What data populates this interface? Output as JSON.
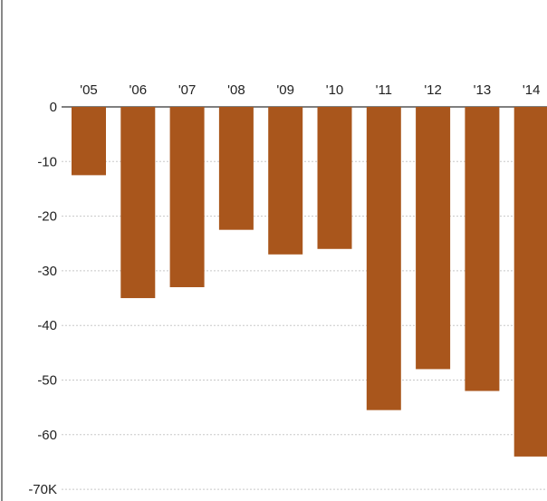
{
  "chart_data": {
    "type": "bar",
    "title": "",
    "xlabel": "",
    "ylabel": "",
    "categories": [
      "'05",
      "'06",
      "'07",
      "'08",
      "'09",
      "'10",
      "'11",
      "'12",
      "'13",
      "'14"
    ],
    "values": [
      -12.5,
      -35,
      -33,
      -22.5,
      -27,
      -26,
      -55.5,
      -48,
      -52,
      -64
    ],
    "ylim": [
      -70,
      0
    ],
    "yticks": [
      {
        "value": 0,
        "label": "0"
      },
      {
        "value": -10,
        "label": "-10"
      },
      {
        "value": -20,
        "label": "-20"
      },
      {
        "value": -30,
        "label": "-30"
      },
      {
        "value": -40,
        "label": "-40"
      },
      {
        "value": -50,
        "label": "-50"
      },
      {
        "value": -60,
        "label": "-60"
      },
      {
        "value": -70,
        "label": "-70K"
      }
    ],
    "category_labels_position": "top",
    "grid": true,
    "grid_style": "dotted",
    "bar_color": "#a9561c",
    "axis_color": "#666666"
  }
}
